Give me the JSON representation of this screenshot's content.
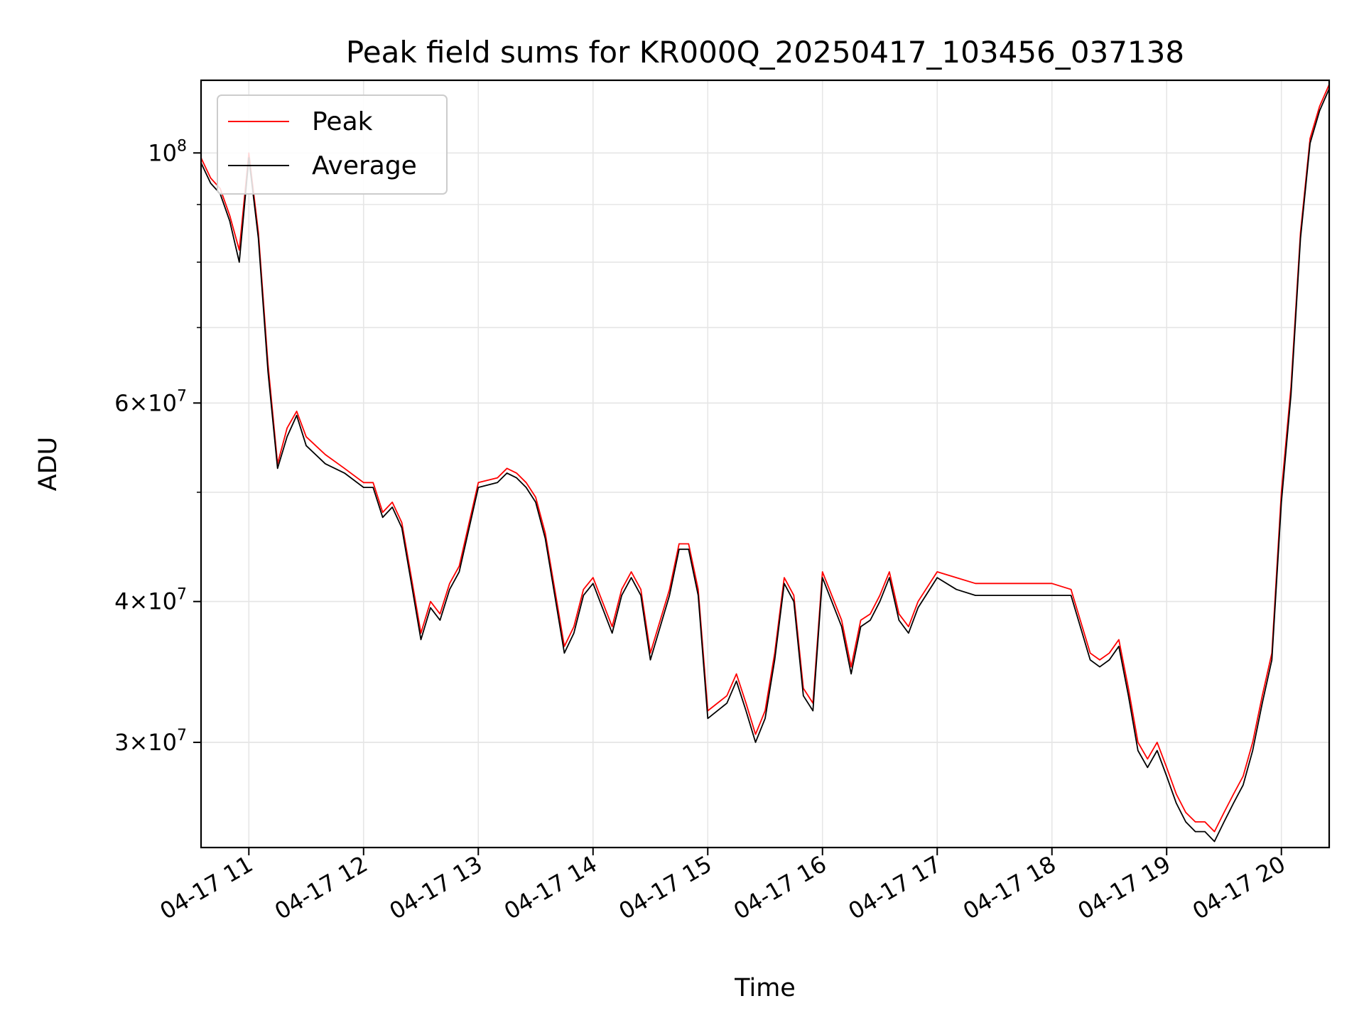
{
  "chart_data": {
    "type": "line",
    "title": "Peak field sums for KR000Q_20250417_103456_037138",
    "xlabel": "Time",
    "ylabel": "ADU",
    "y_scale": "log",
    "ylim": [
      24200000,
      116000000
    ],
    "xlim": [
      "04-17 10:35",
      "04-17 20:25"
    ],
    "x_ticks": [
      "04-17 11",
      "04-17 12",
      "04-17 13",
      "04-17 14",
      "04-17 15",
      "04-17 16",
      "04-17 17",
      "04-17 18",
      "04-17 19",
      "04-17 20"
    ],
    "y_ticks": [
      {
        "value": 30000000,
        "mantissa": "3",
        "exponent": "7"
      },
      {
        "value": 40000000,
        "mantissa": "4",
        "exponent": "7"
      },
      {
        "value": 60000000,
        "mantissa": "6",
        "exponent": "7"
      },
      {
        "value": 100000000,
        "mantissa": "",
        "exponent": "8"
      }
    ],
    "grid": true,
    "legend_position": "top-left",
    "series": [
      {
        "name": "Peak",
        "color": "#ff0000",
        "x": [
          "10:35",
          "10:40",
          "10:45",
          "10:50",
          "10:55",
          "11:00",
          "11:05",
          "11:10",
          "11:15",
          "11:20",
          "11:25",
          "11:30",
          "11:40",
          "11:50",
          "12:00",
          "12:05",
          "12:10",
          "12:15",
          "12:20",
          "12:25",
          "12:30",
          "12:35",
          "12:40",
          "12:45",
          "12:50",
          "13:00",
          "13:10",
          "13:15",
          "13:20",
          "13:25",
          "13:30",
          "13:35",
          "13:40",
          "13:45",
          "13:50",
          "13:55",
          "14:00",
          "14:10",
          "14:15",
          "14:20",
          "14:25",
          "14:30",
          "14:40",
          "14:45",
          "14:50",
          "14:55",
          "15:00",
          "15:10",
          "15:15",
          "15:20",
          "15:25",
          "15:30",
          "15:35",
          "15:40",
          "15:45",
          "15:50",
          "15:55",
          "16:00",
          "16:10",
          "16:15",
          "16:20",
          "16:25",
          "16:30",
          "16:35",
          "16:40",
          "16:45",
          "16:50",
          "17:00",
          "17:10",
          "17:20",
          "17:30",
          "17:40",
          "17:50",
          "18:00",
          "18:10",
          "18:20",
          "18:25",
          "18:30",
          "18:35",
          "18:40",
          "18:45",
          "18:50",
          "18:55",
          "19:00",
          "19:05",
          "19:10",
          "19:15",
          "19:20",
          "19:25",
          "19:30",
          "19:35",
          "19:40",
          "19:45",
          "19:50",
          "19:55",
          "20:00",
          "20:05",
          "20:10",
          "20:15",
          "20:20",
          "20:25"
        ],
        "values": [
          99000000,
          95000000,
          93000000,
          88000000,
          82000000,
          100000000,
          85000000,
          65000000,
          53000000,
          57000000,
          59000000,
          56000000,
          54000000,
          52500000,
          51000000,
          51000000,
          48000000,
          49000000,
          47000000,
          42000000,
          37500000,
          40000000,
          39000000,
          41500000,
          43000000,
          51000000,
          51500000,
          52500000,
          52000000,
          51000000,
          49500000,
          46000000,
          41000000,
          36500000,
          38000000,
          41000000,
          42000000,
          38000000,
          41000000,
          42500000,
          41000000,
          36000000,
          41000000,
          45000000,
          45000000,
          41000000,
          32000000,
          33000000,
          34500000,
          32500000,
          30500000,
          32000000,
          36000000,
          42000000,
          40500000,
          33500000,
          32500000,
          42500000,
          38500000,
          35000000,
          38500000,
          39000000,
          40500000,
          42500000,
          39000000,
          38000000,
          40000000,
          42500000,
          42000000,
          41500000,
          41500000,
          41500000,
          41500000,
          41500000,
          41000000,
          36000000,
          35500000,
          36000000,
          37000000,
          33500000,
          30000000,
          29000000,
          30000000,
          28500000,
          27000000,
          26000000,
          25500000,
          25500000,
          25000000,
          26000000,
          27000000,
          28000000,
          30000000,
          33000000,
          36000000,
          50000000,
          62000000,
          85000000,
          103000000,
          110000000,
          115000000
        ]
      },
      {
        "name": "Average",
        "color": "#000000",
        "x": [
          "10:35",
          "10:40",
          "10:45",
          "10:50",
          "10:55",
          "11:00",
          "11:05",
          "11:10",
          "11:15",
          "11:20",
          "11:25",
          "11:30",
          "11:40",
          "11:50",
          "12:00",
          "12:05",
          "12:10",
          "12:15",
          "12:20",
          "12:25",
          "12:30",
          "12:35",
          "12:40",
          "12:45",
          "12:50",
          "13:00",
          "13:10",
          "13:15",
          "13:20",
          "13:25",
          "13:30",
          "13:35",
          "13:40",
          "13:45",
          "13:50",
          "13:55",
          "14:00",
          "14:10",
          "14:15",
          "14:20",
          "14:25",
          "14:30",
          "14:40",
          "14:45",
          "14:50",
          "14:55",
          "15:00",
          "15:10",
          "15:15",
          "15:20",
          "15:25",
          "15:30",
          "15:35",
          "15:40",
          "15:45",
          "15:50",
          "15:55",
          "16:00",
          "16:10",
          "16:15",
          "16:20",
          "16:25",
          "16:30",
          "16:35",
          "16:40",
          "16:45",
          "16:50",
          "17:00",
          "17:10",
          "17:20",
          "17:30",
          "17:40",
          "17:50",
          "18:00",
          "18:10",
          "18:20",
          "18:25",
          "18:30",
          "18:35",
          "18:40",
          "18:45",
          "18:50",
          "18:55",
          "19:00",
          "19:05",
          "19:10",
          "19:15",
          "19:20",
          "19:25",
          "19:30",
          "19:35",
          "19:40",
          "19:45",
          "19:50",
          "19:55",
          "20:00",
          "20:05",
          "20:10",
          "20:15",
          "20:20",
          "20:25"
        ],
        "values": [
          98000000,
          94000000,
          92000000,
          87000000,
          80000000,
          99000000,
          84000000,
          64000000,
          52500000,
          56000000,
          58500000,
          55000000,
          53000000,
          52000000,
          50500000,
          50500000,
          47500000,
          48500000,
          46500000,
          41500000,
          37000000,
          39500000,
          38500000,
          41000000,
          42500000,
          50500000,
          51000000,
          52000000,
          51500000,
          50500000,
          49000000,
          45500000,
          40500000,
          36000000,
          37500000,
          40500000,
          41500000,
          37500000,
          40500000,
          42000000,
          40500000,
          35500000,
          40500000,
          44500000,
          44500000,
          40500000,
          31500000,
          32500000,
          34000000,
          32000000,
          30000000,
          31500000,
          35500000,
          41500000,
          40000000,
          33000000,
          32000000,
          42000000,
          38000000,
          34500000,
          38000000,
          38500000,
          40000000,
          42000000,
          38500000,
          37500000,
          39500000,
          42000000,
          41000000,
          40500000,
          40500000,
          40500000,
          40500000,
          40500000,
          40500000,
          35500000,
          35000000,
          35500000,
          36500000,
          33000000,
          29500000,
          28500000,
          29500000,
          28000000,
          26500000,
          25500000,
          25000000,
          25000000,
          24500000,
          25500000,
          26500000,
          27500000,
          29500000,
          32500000,
          35500000,
          49000000,
          61000000,
          84000000,
          102000000,
          109000000,
          114000000
        ]
      }
    ]
  }
}
